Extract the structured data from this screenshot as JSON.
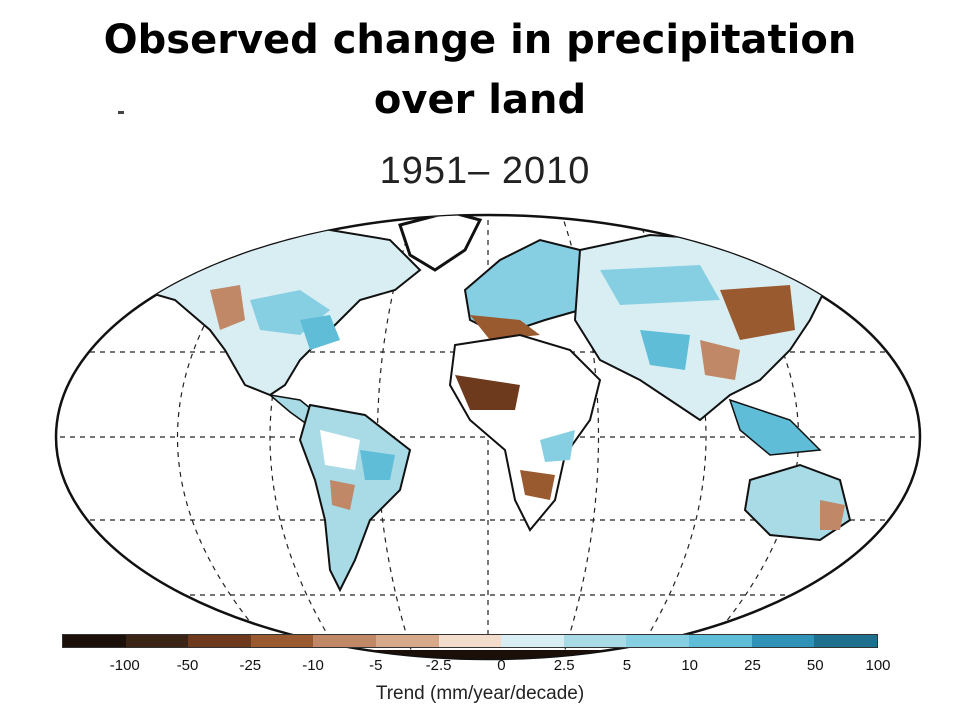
{
  "slide": {
    "title_line1": "Observed change in precipitation",
    "title_line2": "over land"
  },
  "map": {
    "period": "1951– 2010",
    "projection": "robinson",
    "ocean_color": "#ffffff",
    "graticule": "dashed"
  },
  "legend": {
    "colors": [
      "#1b0f0a",
      "#3b2416",
      "#6e3a1e",
      "#9a5a30",
      "#c08866",
      "#d6a98a",
      "#f3dccb",
      "#d9eef3",
      "#a8dbe6",
      "#86cfe2",
      "#5fbdd8",
      "#2f93b8",
      "#1f6f8f"
    ],
    "ticks": [
      "-100",
      "-50",
      "-25",
      "-10",
      "-5",
      "-2.5",
      "0",
      "2.5",
      "5",
      "10",
      "25",
      "50",
      "100"
    ],
    "axis_label": "Trend (mm/year/decade)"
  }
}
